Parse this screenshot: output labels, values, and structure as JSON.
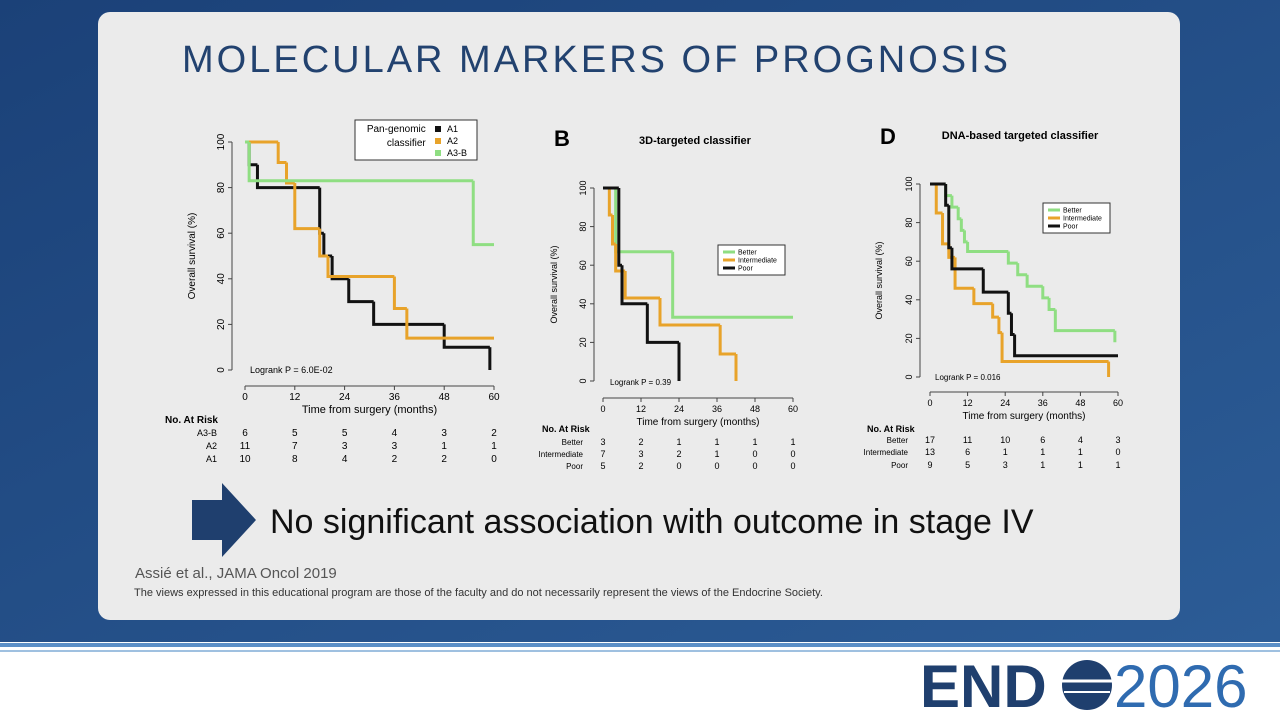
{
  "title": "MOLECULAR MARKERS OF PROGNOSIS",
  "chart_data": [
    {
      "type": "step",
      "xlabel": "Time from surgery (months)",
      "ylabel": "Overall survival (%)",
      "annotation": "Logrank P = 6.0E-02",
      "legend_title": [
        "Pan-genomic",
        "classifier"
      ],
      "xlim": [
        0,
        60
      ],
      "ylim": [
        0,
        100
      ],
      "xticks": [
        0,
        12,
        24,
        36,
        48,
        60
      ],
      "yticks": [
        0,
        20,
        40,
        60,
        80,
        100
      ],
      "series": [
        {
          "name": "A1",
          "color": "#111111",
          "x": [
            0,
            1,
            3,
            18,
            19,
            21,
            25,
            31,
            48,
            59
          ],
          "values": [
            100,
            90,
            80,
            60,
            50,
            40,
            30,
            20,
            10,
            0
          ]
        },
        {
          "name": "A2",
          "color": "#e8a32a",
          "x": [
            0,
            8,
            10,
            12,
            18,
            20,
            36,
            39,
            60
          ],
          "values": [
            100,
            91,
            82,
            62,
            50,
            41,
            27,
            14,
            14
          ]
        },
        {
          "name": "A3-B",
          "color": "#8fde82",
          "x": [
            0,
            1,
            55,
            60
          ],
          "values": [
            100,
            83,
            55,
            55
          ]
        }
      ],
      "risk_table": {
        "header": "No. At Risk",
        "rows": [
          {
            "name": "A3-B",
            "counts": [
              6,
              5,
              5,
              4,
              3,
              2
            ]
          },
          {
            "name": "A2",
            "counts": [
              11,
              7,
              3,
              3,
              1,
              1
            ]
          },
          {
            "name": "A1",
            "counts": [
              10,
              8,
              4,
              2,
              2,
              0
            ]
          }
        ]
      }
    },
    {
      "type": "step",
      "panel": "B",
      "title": "3D-targeted classifier",
      "xlabel": "Time from surgery (months)",
      "ylabel": "Overall survival (%)",
      "annotation": "Logrank P = 0.39",
      "xlim": [
        0,
        60
      ],
      "ylim": [
        0,
        100
      ],
      "xticks": [
        0,
        12,
        24,
        36,
        48,
        60
      ],
      "yticks": [
        0,
        20,
        40,
        60,
        80,
        100
      ],
      "series": [
        {
          "name": "Better",
          "color": "#8fde82",
          "x": [
            0,
            4,
            22,
            60
          ],
          "values": [
            100,
            67,
            33,
            33
          ]
        },
        {
          "name": "Intermediate",
          "color": "#e8a32a",
          "x": [
            0,
            2,
            3,
            4,
            7,
            18,
            37,
            42
          ],
          "values": [
            100,
            86,
            71,
            57,
            43,
            29,
            14,
            0
          ]
        },
        {
          "name": "Poor",
          "color": "#111111",
          "x": [
            0,
            5,
            6,
            14,
            24
          ],
          "values": [
            100,
            60,
            40,
            20,
            0
          ]
        }
      ],
      "risk_table": {
        "header": "No. At Risk",
        "rows": [
          {
            "name": "Better",
            "counts": [
              3,
              2,
              1,
              1,
              1,
              1
            ]
          },
          {
            "name": "Intermediate",
            "counts": [
              7,
              3,
              2,
              1,
              0,
              0
            ]
          },
          {
            "name": "Poor",
            "counts": [
              5,
              2,
              0,
              0,
              0,
              0
            ]
          }
        ]
      }
    },
    {
      "type": "step",
      "panel": "D",
      "title": "DNA-based targeted classifier",
      "xlabel": "Time from surgery (months)",
      "ylabel": "Overall survival (%)",
      "annotation": "Logrank P = 0.016",
      "xlim": [
        0,
        60
      ],
      "ylim": [
        0,
        100
      ],
      "xticks": [
        0,
        12,
        24,
        36,
        48,
        60
      ],
      "yticks": [
        0,
        20,
        40,
        60,
        80,
        100
      ],
      "series": [
        {
          "name": "Better",
          "color": "#8fde82",
          "x": [
            0,
            5,
            7,
            9,
            10,
            11,
            12,
            25,
            28,
            31,
            36,
            38,
            40,
            59
          ],
          "values": [
            100,
            94,
            88,
            82,
            76,
            70,
            65,
            59,
            53,
            47,
            41,
            35,
            24,
            18
          ]
        },
        {
          "name": "Intermediate",
          "color": "#e8a32a",
          "x": [
            0,
            2,
            4,
            6,
            8,
            14,
            20,
            22,
            23,
            57
          ],
          "values": [
            100,
            85,
            69,
            62,
            46,
            38,
            31,
            23,
            8,
            0
          ]
        },
        {
          "name": "Poor",
          "color": "#111111",
          "x": [
            0,
            5,
            6,
            7,
            17,
            25,
            26,
            27,
            60
          ],
          "values": [
            100,
            89,
            67,
            56,
            44,
            33,
            22,
            11,
            11
          ]
        }
      ],
      "risk_table": {
        "header": "No. At Risk",
        "rows": [
          {
            "name": "Better",
            "counts": [
              17,
              11,
              10,
              6,
              4,
              3
            ]
          },
          {
            "name": "Intermediate",
            "counts": [
              13,
              6,
              1,
              1,
              1,
              0
            ]
          },
          {
            "name": "Poor",
            "counts": [
              9,
              5,
              3,
              1,
              1,
              1
            ]
          }
        ]
      }
    }
  ],
  "conclusion": "No significant association with outcome in stage IV",
  "citation": "Assié et al., JAMA Oncol 2019",
  "disclaimer": "The views expressed in this educational program are those of the faculty and do not necessarily represent the views of the Endocrine Society.",
  "logo": {
    "left": "END",
    "right": "2026"
  }
}
